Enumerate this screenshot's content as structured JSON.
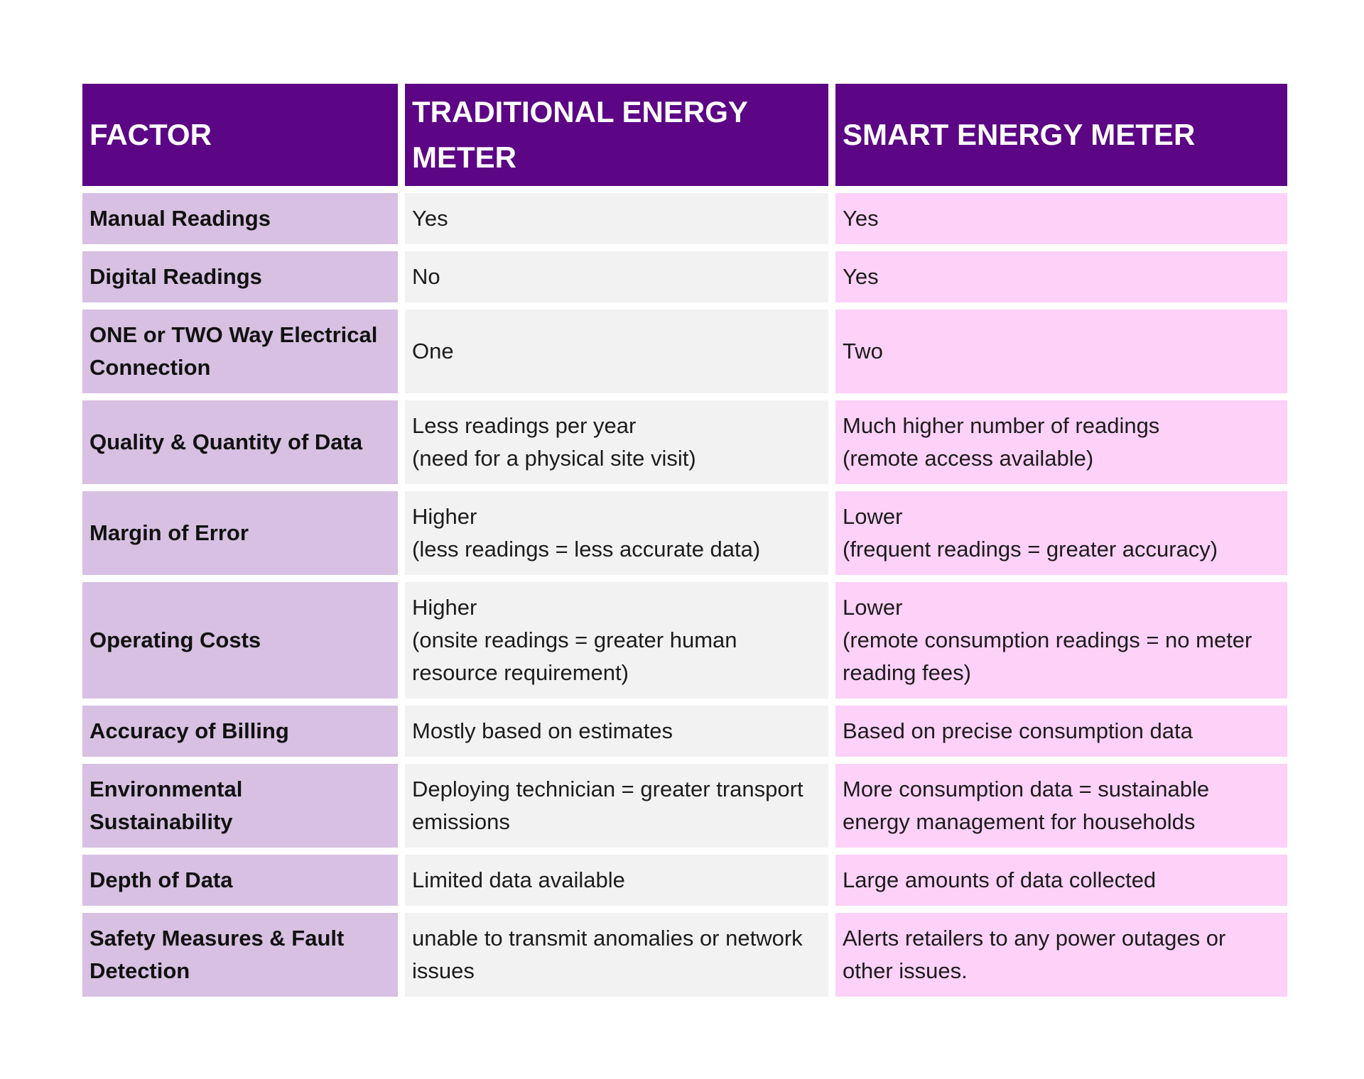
{
  "headers": {
    "factor": "FACTOR",
    "traditional": "TRADITIONAL ENERGY METER",
    "smart": "SMART ENERGY METER"
  },
  "rows": [
    {
      "factor": "Manual Readings",
      "traditional": [
        "Yes"
      ],
      "smart": [
        "Yes"
      ]
    },
    {
      "factor": "Digital Readings",
      "traditional": [
        "No"
      ],
      "smart": [
        "Yes"
      ]
    },
    {
      "factor": "ONE or TWO Way Electrical Connection",
      "traditional": [
        "One"
      ],
      "smart": [
        "Two"
      ]
    },
    {
      "factor": "Quality & Quantity of Data",
      "traditional": [
        "Less readings per year",
        "(need for a physical site visit)"
      ],
      "smart": [
        "Much higher number of readings",
        "(remote access available)"
      ]
    },
    {
      "factor": "Margin of Error",
      "traditional": [
        "Higher",
        "(less readings = less accurate data)"
      ],
      "smart": [
        "Lower",
        "(frequent readings = greater accuracy)"
      ]
    },
    {
      "factor": "Operating Costs",
      "traditional": [
        "Higher",
        "(onsite readings = greater human resource requirement)"
      ],
      "smart": [
        "Lower",
        "(remote consumption readings = no meter reading fees)"
      ]
    },
    {
      "factor": "Accuracy of Billing",
      "traditional": [
        "Mostly based on estimates"
      ],
      "smart": [
        "Based on precise consumption data"
      ]
    },
    {
      "factor": "Environmental Sustainability",
      "traditional": [
        "Deploying technician = greater transport emissions"
      ],
      "smart": [
        "More consumption data = sustainable energy management for households"
      ]
    },
    {
      "factor": "Depth of Data",
      "traditional": [
        "Limited data available"
      ],
      "smart": [
        "Large amounts of data collected"
      ]
    },
    {
      "factor": "Safety Measures & Fault Detection",
      "traditional": [
        "unable to transmit anomalies or network issues"
      ],
      "smart": [
        "Alerts retailers to any power outages or other issues."
      ]
    }
  ],
  "colors": {
    "header_bg": "#5c0685",
    "factor_bg": "#d8c0e2",
    "traditional_bg": "#f2f2f2",
    "smart_bg": "#fdd1f8"
  }
}
